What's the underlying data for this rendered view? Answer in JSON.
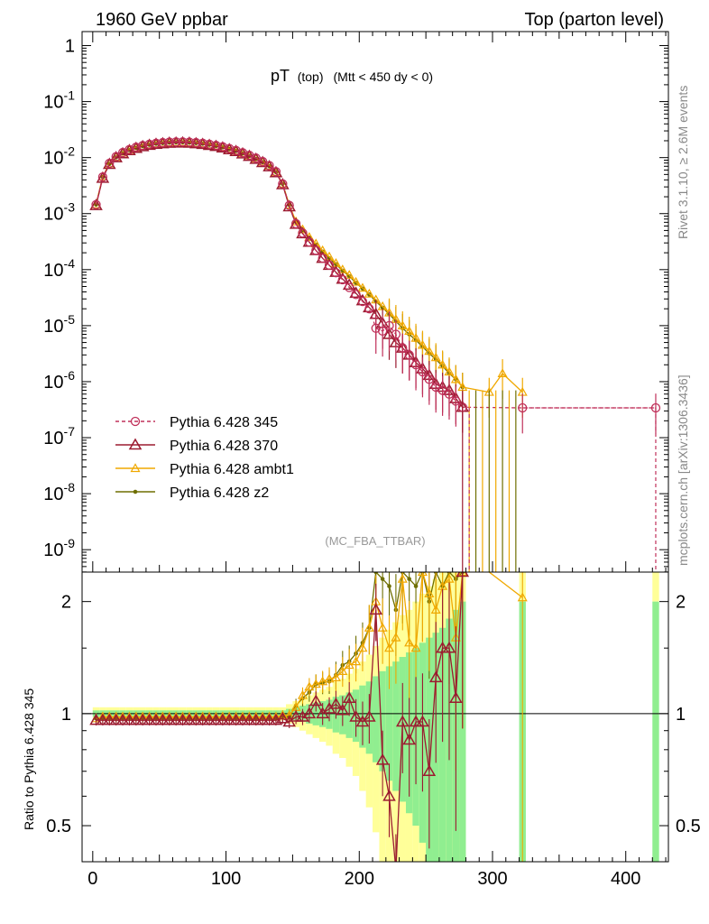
{
  "header": {
    "left": "1960 GeV ppbar",
    "right": "Top (parton level)"
  },
  "plot_title": {
    "main": "pT",
    "sub1": "(top)",
    "sub2": "(Mtt < 450 dy < 0)"
  },
  "analysis_label": "(MC_FBA_TTBAR)",
  "side_labels": {
    "rivet": "Rivet 3.1.10, ≥ 2.6M events",
    "mcplots": "mcplots.cern.ch [arXiv:1306.3436]"
  },
  "ratio_ylabel": "Ratio to Pythia 6.428 345",
  "colors": {
    "p345": "#c0305a",
    "p370": "#9b1b30",
    "ambt1": "#f0a800",
    "z2": "#6e6e00",
    "band_inner": "#90ee90",
    "band_outer": "#ffff99"
  },
  "chart_data": {
    "type": "line",
    "xlim": [
      -8,
      432
    ],
    "main": {
      "ylim_log10": [
        -9.4,
        0.25
      ],
      "y_scale": "log",
      "y_tick_labels": [
        "1",
        "10^-1",
        "10^-2",
        "10^-3",
        "10^-4",
        "10^-5",
        "10^-6",
        "10^-7",
        "10^-8",
        "10^-9"
      ],
      "x": [
        2.5,
        7.5,
        12.5,
        17.5,
        22.5,
        27.5,
        32.5,
        37.5,
        42.5,
        47.5,
        52.5,
        57.5,
        62.5,
        67.5,
        72.5,
        77.5,
        82.5,
        87.5,
        92.5,
        97.5,
        102.5,
        107.5,
        112.5,
        117.5,
        122.5,
        127.5,
        132.5,
        137.5,
        142.5,
        147.5,
        152.5,
        157.5,
        162.5,
        167.5,
        172.5,
        177.5,
        182.5,
        187.5,
        192.5,
        197.5,
        202.5,
        207.5,
        212.5,
        217.5,
        222.5,
        227.5,
        232.5,
        237.5,
        242.5,
        247.5,
        252.5,
        257.5,
        262.5,
        267.5,
        272.5,
        277.5
      ],
      "series": [
        {
          "name": "Pythia 6.428 345",
          "style": "dashed-circle",
          "values": [
            0.00145,
            0.0045,
            0.0079,
            0.0104,
            0.0123,
            0.0139,
            0.0153,
            0.0164,
            0.0173,
            0.018,
            0.0185,
            0.0189,
            0.0191,
            0.0191,
            0.0189,
            0.0185,
            0.018,
            0.0173,
            0.0165,
            0.0156,
            0.0145,
            0.0134,
            0.0122,
            0.011,
            0.0098,
            0.0085,
            0.0072,
            0.0056,
            0.0034,
            0.0014,
            0.00066,
            0.00045,
            0.00031,
            0.00022,
            0.00016,
            0.00012,
            8.8e-05,
            6.6e-05,
            4.8e-05,
            3.6e-05,
            2.7e-05,
            2e-05,
            9e-06,
            8e-06,
            1e-05,
            7e-06,
            4e-06,
            3e-06,
            2e-06,
            1.5e-06,
            1.1e-06,
            8e-07,
            7e-07,
            6e-07,
            4.5e-07,
            3.5e-07
          ],
          "extra_x": [
            322.5,
            422.5
          ],
          "extra_values": [
            3.4e-07,
            3.4e-07
          ]
        },
        {
          "name": "Pythia 6.428 370",
          "style": "solid-triangle-open",
          "values": [
            0.0014,
            0.0043,
            0.0076,
            0.01,
            0.0118,
            0.0134,
            0.0147,
            0.0158,
            0.0167,
            0.0174,
            0.0178,
            0.0182,
            0.0183,
            0.0184,
            0.0182,
            0.0178,
            0.0173,
            0.0166,
            0.0159,
            0.015,
            0.0139,
            0.0129,
            0.0117,
            0.0106,
            0.0094,
            0.0082,
            0.0069,
            0.0054,
            0.0033,
            0.00133,
            0.00065,
            0.00044,
            0.00031,
            0.00022,
            0.00016,
            0.00012,
            9e-05,
            6.8e-05,
            5.3e-05,
            3.8e-05,
            2.8e-05,
            2.1e-05,
            1.6e-05,
            1.1e-05,
            7e-06,
            5e-06,
            4e-06,
            3e-06,
            2.2e-06,
            1.7e-06,
            1.3e-06,
            9e-07,
            8e-07,
            7e-07,
            5e-07,
            3.5e-07
          ]
        },
        {
          "name": "Pythia 6.428 ambt1",
          "style": "solid-triangle-small",
          "values": [
            0.00145,
            0.0046,
            0.0078,
            0.0102,
            0.0121,
            0.0137,
            0.015,
            0.0161,
            0.017,
            0.0177,
            0.0182,
            0.0186,
            0.0188,
            0.0188,
            0.0186,
            0.0182,
            0.0177,
            0.017,
            0.0162,
            0.0153,
            0.0143,
            0.0132,
            0.012,
            0.0108,
            0.0096,
            0.0084,
            0.0071,
            0.0055,
            0.0034,
            0.00143,
            0.00072,
            0.00052,
            0.00038,
            0.00029,
            0.00022,
            0.00017,
            0.00013,
            0.0001,
            8e-05,
            6e-05,
            4.7e-05,
            3.7e-05,
            2.9e-05,
            2.2e-05,
            1.7e-05,
            1.3e-05,
            1e-05,
            8e-06,
            6e-06,
            4.5e-06,
            3.5e-06,
            2.7e-06,
            2e-06,
            1.5e-06,
            1.1e-06,
            8e-07
          ],
          "extra_x": [
            297.5,
            307.5,
            322.5
          ],
          "extra_values": [
            6.5e-07,
            1.4e-06,
            6.5e-07
          ]
        },
        {
          "name": "Pythia 6.428 z2",
          "style": "solid-dot",
          "values": [
            0.00145,
            0.0045,
            0.0077,
            0.0101,
            0.012,
            0.0136,
            0.0149,
            0.016,
            0.0169,
            0.0176,
            0.0181,
            0.0185,
            0.0187,
            0.0187,
            0.0185,
            0.0181,
            0.0176,
            0.0169,
            0.0161,
            0.0152,
            0.0142,
            0.0131,
            0.0119,
            0.0107,
            0.0095,
            0.0083,
            0.007,
            0.0055,
            0.0034,
            0.00142,
            0.00071,
            0.00051,
            0.00037,
            0.00028,
            0.00021,
            0.00016,
            0.000125,
            9.6e-05,
            7.6e-05,
            5.8e-05,
            4.6e-05,
            3.6e-05,
            2.7e-05,
            2.1e-05,
            1.6e-05,
            1.2e-05,
            9e-06,
            7e-06,
            5.5e-06,
            4.2e-06,
            3.2e-06,
            2.5e-06,
            1.9e-06,
            1.4e-06,
            1.1e-06,
            8e-07
          ]
        }
      ]
    },
    "ratio": {
      "ylim": [
        0.4,
        2.4
      ],
      "y_scale": "log",
      "y_tick_labels": [
        "0.5",
        "1",
        "2"
      ],
      "x": [
        2.5,
        7.5,
        12.5,
        17.5,
        22.5,
        27.5,
        32.5,
        37.5,
        42.5,
        47.5,
        52.5,
        57.5,
        62.5,
        67.5,
        72.5,
        77.5,
        82.5,
        87.5,
        92.5,
        97.5,
        102.5,
        107.5,
        112.5,
        117.5,
        122.5,
        127.5,
        132.5,
        137.5,
        142.5,
        147.5,
        152.5,
        157.5,
        162.5,
        167.5,
        172.5,
        177.5,
        182.5,
        187.5,
        192.5,
        197.5,
        202.5,
        207.5,
        212.5,
        217.5,
        222.5,
        227.5,
        232.5,
        237.5,
        242.5,
        247.5,
        252.5,
        257.5,
        262.5,
        267.5,
        272.5,
        277.5
      ],
      "series": [
        {
          "name": "Pythia 6.428 370",
          "values": [
            0.96,
            0.96,
            0.96,
            0.96,
            0.96,
            0.96,
            0.96,
            0.96,
            0.96,
            0.96,
            0.96,
            0.96,
            0.96,
            0.96,
            0.96,
            0.96,
            0.96,
            0.96,
            0.96,
            0.96,
            0.96,
            0.96,
            0.96,
            0.96,
            0.96,
            0.96,
            0.96,
            0.96,
            0.97,
            0.95,
            0.98,
            0.98,
            1.0,
            1.08,
            1.0,
            1.03,
            1.06,
            1.02,
            1.1,
            0.98,
            0.95,
            0.98,
            1.9,
            0.75,
            0.6,
            0.38,
            0.95,
            0.85,
            0.95,
            0.95,
            0.7,
            1.25,
            1.5,
            1.5,
            1.1,
            2.4
          ]
        },
        {
          "name": "Pythia 6.428 ambt1",
          "values": [
            0.97,
            0.98,
            0.98,
            0.98,
            0.98,
            0.98,
            0.98,
            0.98,
            0.98,
            0.98,
            0.98,
            0.98,
            0.98,
            0.98,
            0.98,
            0.98,
            0.98,
            0.98,
            0.98,
            0.98,
            0.98,
            0.98,
            0.98,
            0.98,
            0.98,
            0.98,
            0.98,
            0.98,
            0.99,
            0.99,
            1.04,
            1.12,
            1.18,
            1.2,
            1.22,
            1.24,
            1.25,
            1.3,
            1.35,
            1.38,
            1.5,
            1.7,
            2.0,
            1.7,
            1.5,
            1.6,
            2.3,
            1.55,
            1.5,
            2.4,
            2.1,
            1.9,
            2.2,
            2.3,
            1.6,
            2.4
          ],
          "extra_x": [
            322.5
          ],
          "extra_values": [
            2.05
          ]
        },
        {
          "name": "Pythia 6.428 z2",
          "values": [
            0.97,
            0.97,
            0.97,
            0.97,
            0.97,
            0.97,
            0.97,
            0.97,
            0.97,
            0.97,
            0.97,
            0.97,
            0.97,
            0.97,
            0.97,
            0.97,
            0.97,
            0.97,
            0.97,
            0.97,
            0.97,
            0.97,
            0.97,
            0.97,
            0.97,
            0.97,
            0.97,
            0.97,
            0.98,
            0.98,
            1.05,
            1.1,
            1.14,
            1.2,
            1.21,
            1.22,
            1.27,
            1.35,
            1.38,
            1.45,
            1.55,
            1.7,
            2.4,
            2.3,
            2.2,
            1.9,
            2.4,
            2.3,
            2.2,
            2.4,
            2.0,
            2.4,
            2.2,
            2.4,
            2.3,
            2.4
          ]
        }
      ],
      "band_inner": [
        0.02,
        0.02,
        0.02,
        0.02,
        0.02,
        0.02,
        0.02,
        0.02,
        0.02,
        0.02,
        0.02,
        0.02,
        0.02,
        0.02,
        0.02,
        0.02,
        0.02,
        0.02,
        0.02,
        0.02,
        0.02,
        0.02,
        0.02,
        0.02,
        0.02,
        0.02,
        0.02,
        0.02,
        0.02,
        0.03,
        0.04,
        0.05,
        0.06,
        0.07,
        0.08,
        0.09,
        0.11,
        0.12,
        0.14,
        0.16,
        0.19,
        0.22,
        0.26,
        0.3,
        0.34,
        0.38,
        0.42,
        0.46,
        0.5,
        0.55,
        0.6,
        0.65,
        0.7,
        0.8,
        0.9,
        1.0
      ],
      "band_outer": [
        0.04,
        0.04,
        0.04,
        0.04,
        0.04,
        0.04,
        0.04,
        0.04,
        0.04,
        0.04,
        0.04,
        0.04,
        0.04,
        0.04,
        0.04,
        0.04,
        0.04,
        0.04,
        0.04,
        0.04,
        0.04,
        0.04,
        0.04,
        0.04,
        0.04,
        0.04,
        0.04,
        0.04,
        0.04,
        0.06,
        0.08,
        0.1,
        0.12,
        0.14,
        0.16,
        0.18,
        0.22,
        0.24,
        0.28,
        0.32,
        0.38,
        0.44,
        0.52,
        0.6,
        0.68,
        0.76,
        0.84,
        0.9,
        1.0,
        1.1,
        1.2,
        1.3,
        1.4,
        1.5,
        1.6,
        1.8
      ],
      "extra_bands": [
        {
          "x": 322.5,
          "width": 5
        },
        {
          "x": 422.5,
          "width": 5
        }
      ],
      "x_tick_labels": [
        "0",
        "100",
        "200",
        "300",
        "400"
      ]
    }
  }
}
